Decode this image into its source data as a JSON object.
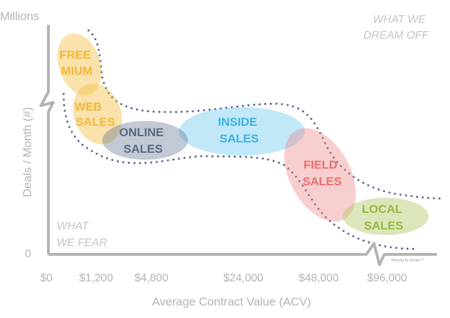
{
  "y_axis": {
    "unit_top": "Millions",
    "label": "Deals / Month (#)",
    "zero": "0"
  },
  "x_axis": {
    "label": "Average Contract Value (ACV)",
    "ticks": [
      "$0",
      "$1,200",
      "$4,800",
      "$24,000",
      "$48,000",
      "$96,000"
    ]
  },
  "corners": {
    "top_right": [
      "WHAT WE",
      "DREAM OFF"
    ],
    "bottom_left": [
      "WHAT",
      "WE FEAR"
    ]
  },
  "segments": [
    {
      "id": "freemium",
      "lines": [
        "FREE",
        "MIUM"
      ],
      "color": "#f1bf45",
      "text_color": "#f2b73a"
    },
    {
      "id": "web-sales",
      "lines": [
        "WEB",
        "SALES"
      ],
      "color": "#f1bf45",
      "text_color": "#f2b73a"
    },
    {
      "id": "online-sales",
      "lines": [
        "ONLINE",
        "SALES"
      ],
      "color": "#5f708f",
      "text_color": "#586780"
    },
    {
      "id": "inside-sales",
      "lines": [
        "INSIDE",
        "SALES"
      ],
      "color": "#5cc2ee",
      "text_color": "#3fb1e3"
    },
    {
      "id": "field-sales",
      "lines": [
        "FIELD",
        "SALES"
      ],
      "color": "#ee8686",
      "text_color": "#ec6d6d"
    },
    {
      "id": "local-sales",
      "lines": [
        "LOCAL",
        "SALES"
      ],
      "color": "#a9c65a",
      "text_color": "#98b83f"
    }
  ],
  "credit": "Winning By Design™",
  "colors": {
    "axis": "#b3b3b3",
    "frontier": "#5a6b8c"
  }
}
